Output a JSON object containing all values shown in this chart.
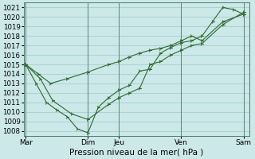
{
  "xlabel": "Pression niveau de la mer( hPa )",
  "ylim": [
    1007.5,
    1021.5
  ],
  "yticks": [
    1008,
    1009,
    1010,
    1011,
    1012,
    1013,
    1014,
    1015,
    1016,
    1017,
    1018,
    1019,
    1020,
    1021
  ],
  "bg_color": "#cce8e8",
  "line_color": "#2d6a2d",
  "grid_color": "#99cccc",
  "xtick_labels": [
    "Mar",
    "",
    "Dim",
    "Jeu",
    "",
    "Ven",
    "",
    "Sam"
  ],
  "xtick_positions": [
    0,
    1.5,
    3,
    4.5,
    6,
    7.5,
    9,
    10.5
  ],
  "xlim": [
    -0.1,
    10.8
  ],
  "series_x": [
    [
      0,
      0.6,
      1.2,
      2.0,
      3.0,
      4.0,
      4.5,
      5.0,
      5.5,
      6.0,
      6.5,
      7.0,
      7.5,
      8.0,
      8.5,
      9.5,
      10.5
    ],
    [
      0,
      0.5,
      1.0,
      1.5,
      2.0,
      2.5,
      3.0,
      3.5,
      4.0,
      4.5,
      5.0,
      5.5,
      6.0,
      6.5,
      7.0,
      7.5,
      8.0,
      8.5,
      9.0,
      9.5,
      10.0,
      10.5
    ],
    [
      0,
      0.7,
      1.3,
      2.2,
      3.0,
      4.0,
      4.5,
      5.0,
      5.5,
      6.0,
      6.5,
      7.0,
      7.5,
      8.0,
      8.5,
      9.5,
      10.5
    ]
  ],
  "series_y": [
    [
      1015,
      1014,
      1013,
      1013.5,
      1014.2,
      1015.0,
      1015.3,
      1015.8,
      1016.2,
      1016.5,
      1016.7,
      1017.0,
      1017.5,
      1018.0,
      1017.5,
      1019.5,
      1020.3
    ],
    [
      1015,
      1013,
      1011,
      1010.2,
      1009.5,
      1008.2,
      1007.8,
      1010.5,
      1011.5,
      1012.3,
      1012.8,
      1014.3,
      1014.5,
      1016.2,
      1016.8,
      1017.3,
      1017.5,
      1018.0,
      1019.5,
      1021.0,
      1020.8,
      1020.3
    ],
    [
      1015,
      1013.5,
      1011.2,
      1009.8,
      1009.2,
      1010.8,
      1011.5,
      1012.0,
      1012.5,
      1015.0,
      1015.3,
      1016.0,
      1016.5,
      1017.0,
      1017.2,
      1019.2,
      1020.5
    ]
  ],
  "xlabel_fontsize": 7.5,
  "ytick_fontsize": 6.2,
  "xtick_fontsize": 6.5
}
